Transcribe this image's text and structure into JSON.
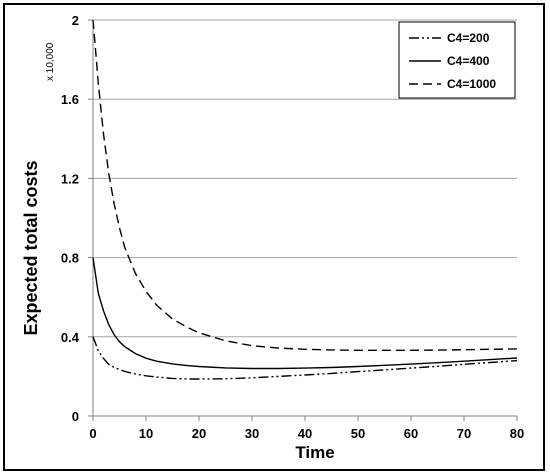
{
  "chart_data": {
    "type": "line",
    "xlabel": "Time",
    "ylabel": "Expected total costs",
    "y_unit": "x 10,000",
    "xlim": [
      0,
      80
    ],
    "ylim": [
      0,
      2
    ],
    "x_ticks": [
      0,
      10,
      20,
      30,
      40,
      50,
      60,
      70,
      80
    ],
    "y_ticks": [
      "0",
      "0.4",
      "0.8",
      "1.2",
      "1.6",
      "2"
    ],
    "grid": "horizontal",
    "legend_position": "top-right",
    "series": [
      {
        "name": "C4=200",
        "line_style": "dash-dot-dot",
        "x": [
          0,
          1,
          2,
          3,
          4,
          5,
          6,
          8,
          10,
          12,
          15,
          18,
          20,
          25,
          30,
          35,
          40,
          45,
          50,
          55,
          60,
          65,
          70,
          75,
          80
        ],
        "y": [
          0.4,
          0.33,
          0.29,
          0.26,
          0.245,
          0.235,
          0.225,
          0.212,
          0.203,
          0.197,
          0.19,
          0.187,
          0.187,
          0.188,
          0.193,
          0.2,
          0.207,
          0.215,
          0.224,
          0.233,
          0.242,
          0.251,
          0.261,
          0.27,
          0.28
        ]
      },
      {
        "name": "C4=400",
        "line_style": "solid",
        "x": [
          0,
          1,
          2,
          3,
          4,
          5,
          6,
          8,
          10,
          12,
          15,
          18,
          20,
          25,
          30,
          35,
          40,
          45,
          50,
          55,
          60,
          65,
          70,
          75,
          80
        ],
        "y": [
          0.8,
          0.62,
          0.53,
          0.46,
          0.41,
          0.375,
          0.35,
          0.315,
          0.292,
          0.277,
          0.263,
          0.254,
          0.25,
          0.243,
          0.24,
          0.24,
          0.242,
          0.245,
          0.25,
          0.256,
          0.262,
          0.269,
          0.277,
          0.285,
          0.293
        ]
      },
      {
        "name": "C4=1000",
        "line_style": "dashed",
        "x": [
          0,
          0.5,
          1,
          2,
          3,
          4,
          5,
          6,
          8,
          10,
          12,
          15,
          18,
          20,
          25,
          30,
          35,
          40,
          45,
          50,
          55,
          60,
          65,
          70,
          75,
          80
        ],
        "y": [
          2.0,
          1.84,
          1.68,
          1.42,
          1.22,
          1.07,
          0.95,
          0.85,
          0.72,
          0.63,
          0.56,
          0.49,
          0.445,
          0.42,
          0.38,
          0.355,
          0.343,
          0.337,
          0.334,
          0.332,
          0.332,
          0.332,
          0.333,
          0.335,
          0.337,
          0.339
        ]
      }
    ]
  }
}
